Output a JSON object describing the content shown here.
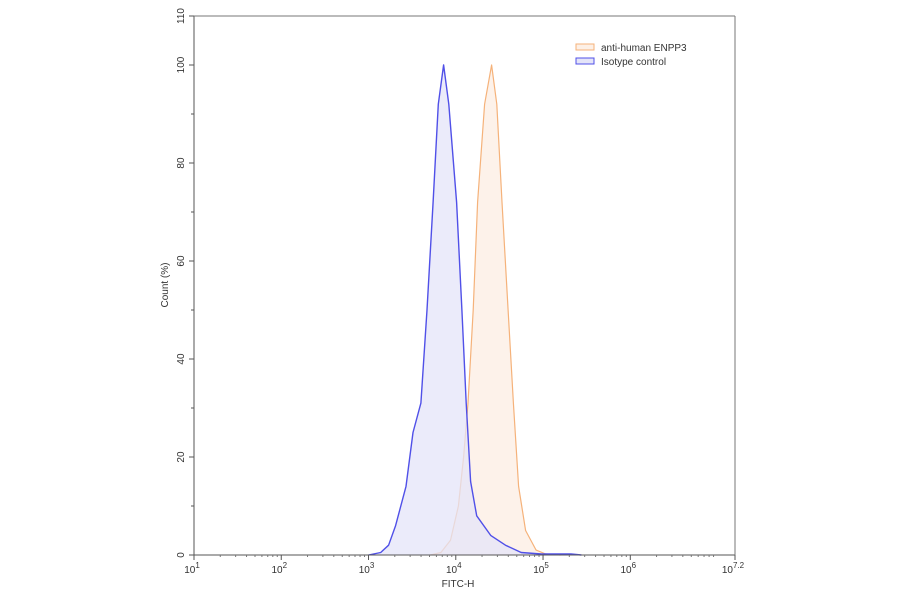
{
  "chart_data": {
    "type": "area",
    "title": "",
    "xlabel": "FITC-H",
    "ylabel": "Count (%)",
    "xscale": "log10",
    "xlim_log10": [
      1,
      7.2
    ],
    "ylim": [
      0,
      110
    ],
    "x_ticks": [
      {
        "exp": 1,
        "base": "10",
        "sup": "1"
      },
      {
        "exp": 2,
        "base": "10",
        "sup": "2"
      },
      {
        "exp": 3,
        "base": "10",
        "sup": "3"
      },
      {
        "exp": 4,
        "base": "10",
        "sup": "4"
      },
      {
        "exp": 5,
        "base": "10",
        "sup": "5"
      },
      {
        "exp": 6,
        "base": "10",
        "sup": "6"
      },
      {
        "exp": 7.2,
        "base": "10",
        "sup": "7.2"
      }
    ],
    "y_ticks_labeled": [
      0,
      20,
      40,
      60,
      80,
      100,
      110
    ],
    "y_ticks_minor": [
      10,
      30,
      50,
      70,
      90
    ],
    "grid": false,
    "legend_position": "top-right",
    "series": [
      {
        "name": "anti-human ENPP3",
        "stroke": "#f5b27a",
        "fill": "#fdf0e6",
        "peak_log10": 4.41,
        "points_log10_count": [
          [
            3.71,
            0
          ],
          [
            3.83,
            0.5
          ],
          [
            3.94,
            3
          ],
          [
            4.03,
            10
          ],
          [
            4.09,
            20
          ],
          [
            4.14,
            31
          ],
          [
            4.2,
            50
          ],
          [
            4.25,
            72
          ],
          [
            4.33,
            92
          ],
          [
            4.41,
            100
          ],
          [
            4.47,
            92
          ],
          [
            4.53,
            72
          ],
          [
            4.6,
            50
          ],
          [
            4.66,
            31
          ],
          [
            4.72,
            14
          ],
          [
            4.8,
            5
          ],
          [
            4.92,
            1
          ],
          [
            5.03,
            0.2
          ],
          [
            5.2,
            0
          ]
        ]
      },
      {
        "name": "Isotype control",
        "stroke": "#5050e8",
        "fill": "#e4e4f8",
        "peak_log10": 3.86,
        "points_log10_count": [
          [
            3.0,
            0
          ],
          [
            3.14,
            0.5
          ],
          [
            3.23,
            2
          ],
          [
            3.31,
            6
          ],
          [
            3.43,
            14
          ],
          [
            3.51,
            25
          ],
          [
            3.6,
            31
          ],
          [
            3.67,
            50
          ],
          [
            3.74,
            72
          ],
          [
            3.8,
            92
          ],
          [
            3.86,
            100
          ],
          [
            3.92,
            92
          ],
          [
            4.01,
            72
          ],
          [
            4.07,
            50
          ],
          [
            4.12,
            31
          ],
          [
            4.17,
            15
          ],
          [
            4.24,
            8
          ],
          [
            4.4,
            4
          ],
          [
            4.57,
            2
          ],
          [
            4.75,
            0.5
          ],
          [
            4.98,
            0.2
          ],
          [
            5.32,
            0.2
          ],
          [
            5.44,
            0
          ]
        ]
      }
    ]
  },
  "legend": {
    "items": [
      {
        "label": "anti-human ENPP3",
        "stroke": "#f5b27a",
        "fill": "#fdf0e6"
      },
      {
        "label": "Isotype control",
        "stroke": "#5050e8",
        "fill": "#e4e4f8"
      }
    ]
  },
  "axes": {
    "x_title": "FITC-H",
    "y_title": "Count (%)"
  }
}
